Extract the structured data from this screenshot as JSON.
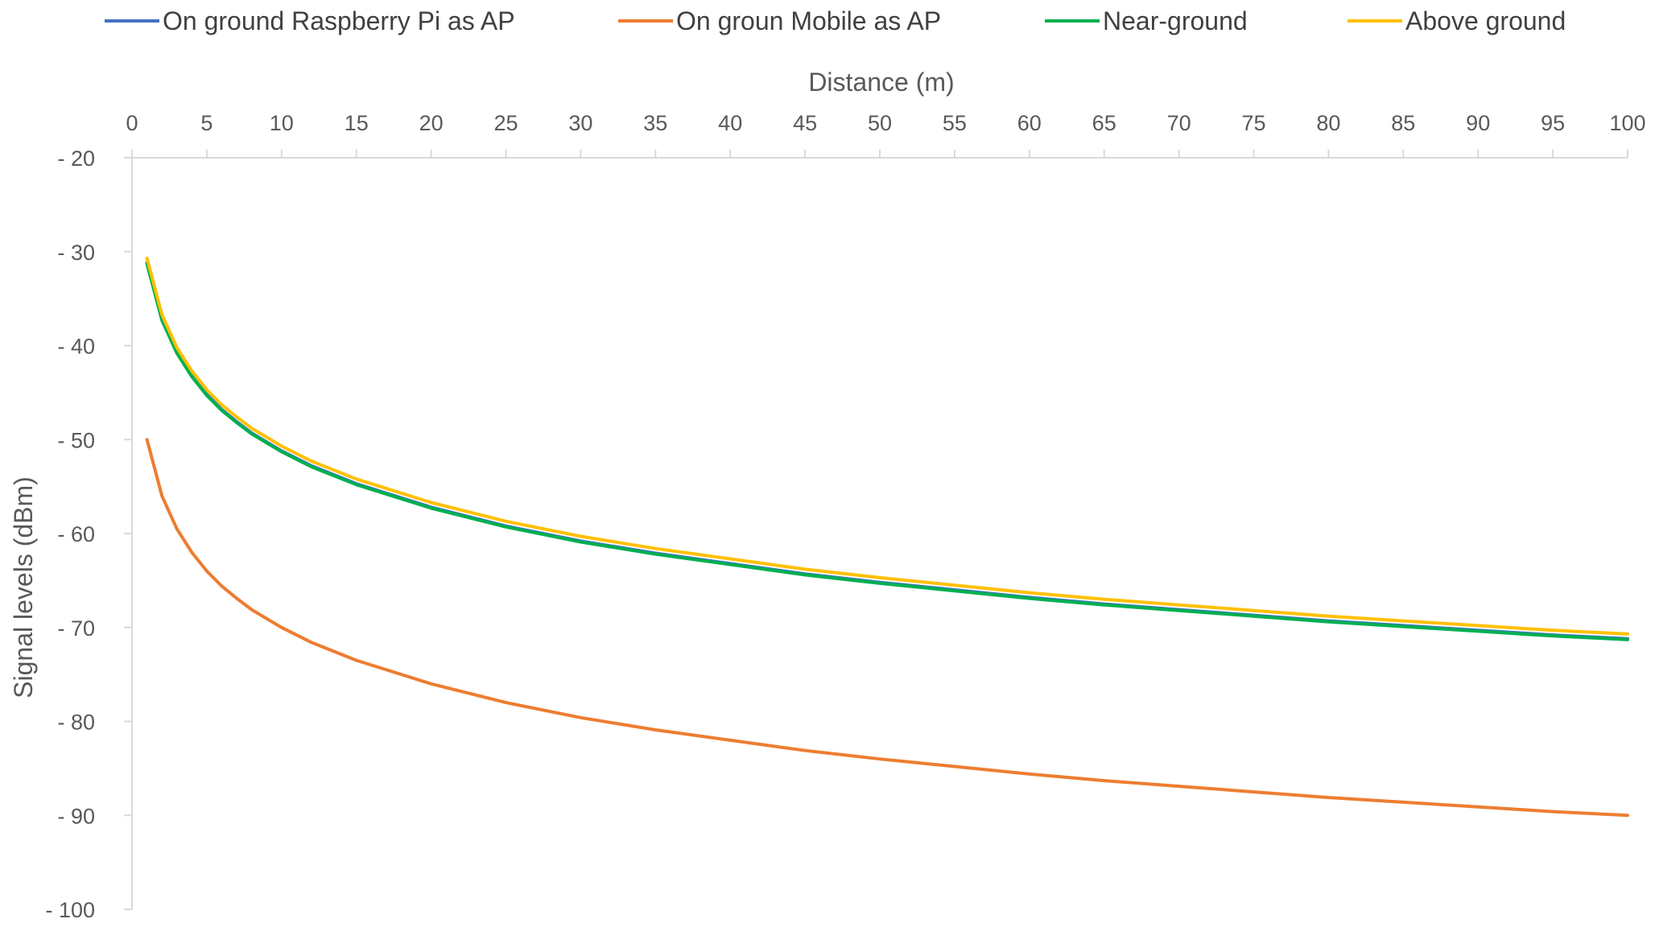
{
  "chart_data": {
    "type": "line",
    "xlabel": "Distance (m)",
    "ylabel": "Signal levels (dBm)",
    "xlim": [
      0,
      100
    ],
    "ylim": [
      -100,
      -20
    ],
    "x_axis_position": "top",
    "grid": false,
    "legend_position": "top",
    "x_ticks": [
      0,
      5,
      10,
      15,
      20,
      25,
      30,
      35,
      40,
      45,
      50,
      55,
      60,
      65,
      70,
      75,
      80,
      85,
      90,
      95,
      100
    ],
    "x_tick_labels": [
      "0",
      "5",
      "10",
      "15",
      "20",
      "25",
      "30",
      "35",
      "40",
      "45",
      "50",
      "55",
      "60",
      "65",
      "70",
      "75",
      "80",
      "85",
      "90",
      "95",
      "100"
    ],
    "y_ticks": [
      -20,
      -30,
      -40,
      -50,
      -60,
      -70,
      -80,
      -90,
      -100
    ],
    "y_tick_labels": [
      "- 20",
      "- 30",
      "- 40",
      "- 50",
      "- 60",
      "- 70",
      "- 80",
      "- 90",
      "- 100"
    ],
    "x": [
      1,
      2,
      3,
      4,
      5,
      6,
      7,
      8,
      10,
      12,
      15,
      20,
      25,
      30,
      35,
      40,
      45,
      50,
      55,
      60,
      65,
      70,
      75,
      80,
      85,
      90,
      95,
      100
    ],
    "series": [
      {
        "name": "On ground Raspberry Pi as AP",
        "color": "#4472C4",
        "values": [
          -31.2,
          -37.2,
          -40.7,
          -43.2,
          -45.2,
          -46.8,
          -48.1,
          -49.3,
          -51.2,
          -52.8,
          -54.7,
          -57.2,
          -59.2,
          -60.8,
          -62.1,
          -63.2,
          -64.3,
          -65.2,
          -66.0,
          -66.8,
          -67.5,
          -68.1,
          -68.7,
          -69.3,
          -69.8,
          -70.3,
          -70.8,
          -71.2
        ]
      },
      {
        "name": "On groun Mobile as AP",
        "color": "#ED7D31",
        "values": [
          -50.0,
          -56.0,
          -59.5,
          -62.0,
          -64.0,
          -65.6,
          -66.9,
          -68.1,
          -70.0,
          -71.6,
          -73.5,
          -76.0,
          -78.0,
          -79.6,
          -80.9,
          -82.0,
          -83.1,
          -84.0,
          -84.8,
          -85.6,
          -86.3,
          -86.9,
          -87.5,
          -88.1,
          -88.6,
          -89.1,
          -89.6,
          -90.0
        ]
      },
      {
        "name": "Near-ground",
        "color": "#00B050",
        "values": [
          -31.3,
          -37.3,
          -40.8,
          -43.3,
          -45.3,
          -46.9,
          -48.2,
          -49.4,
          -51.3,
          -52.9,
          -54.8,
          -57.3,
          -59.3,
          -60.9,
          -62.2,
          -63.3,
          -64.4,
          -65.3,
          -66.1,
          -66.9,
          -67.6,
          -68.2,
          -68.8,
          -69.4,
          -69.9,
          -70.4,
          -70.9,
          -71.3
        ]
      },
      {
        "name": "Above ground",
        "color": "#FFC000",
        "values": [
          -30.7,
          -36.7,
          -40.2,
          -42.7,
          -44.7,
          -46.3,
          -47.6,
          -48.8,
          -50.7,
          -52.3,
          -54.2,
          -56.7,
          -58.7,
          -60.3,
          -61.6,
          -62.7,
          -63.8,
          -64.7,
          -65.5,
          -66.3,
          -67.0,
          -67.6,
          -68.2,
          -68.8,
          -69.3,
          -69.8,
          -70.3,
          -70.7
        ]
      }
    ]
  }
}
